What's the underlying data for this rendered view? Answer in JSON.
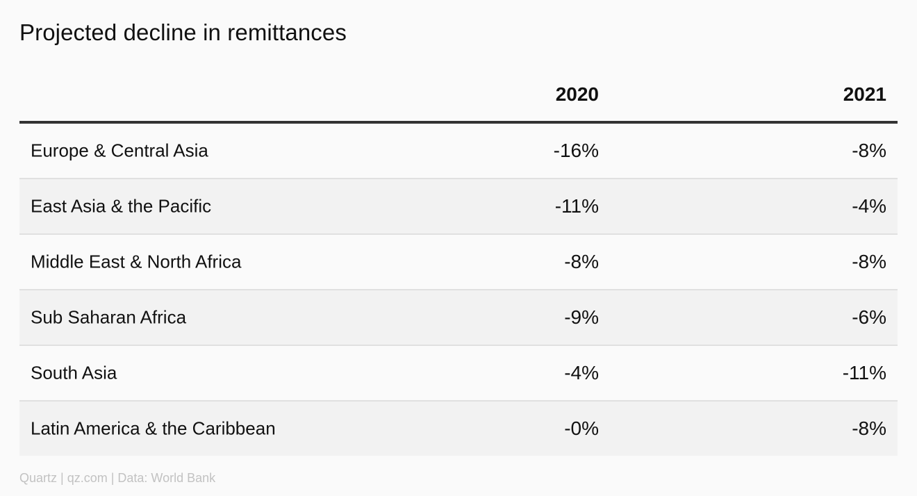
{
  "title": "Projected decline in remittances",
  "footer": "Quartz | qz.com | Data: World Bank",
  "chart_data": {
    "type": "table",
    "title": "Projected decline in remittances",
    "columns": [
      "",
      "2020",
      "2021"
    ],
    "rows": [
      {
        "region": "Europe & Central Asia",
        "y2020": "-16%",
        "y2021": "-8%"
      },
      {
        "region": "East Asia & the Pacific",
        "y2020": "-11%",
        "y2021": "-4%"
      },
      {
        "region": "Middle East & North Africa",
        "y2020": "-8%",
        "y2021": "-8%"
      },
      {
        "region": "Sub Saharan Africa",
        "y2020": "-9%",
        "y2021": "-6%"
      },
      {
        "region": "South Asia",
        "y2020": "-4%",
        "y2021": "-11%"
      },
      {
        "region": "Latin America & the Caribbean",
        "y2020": "-0%",
        "y2021": "-8%"
      }
    ],
    "values_2020": [
      -16,
      -11,
      -8,
      -9,
      -4,
      0
    ],
    "values_2021": [
      -8,
      -4,
      -8,
      -6,
      -11,
      -8
    ],
    "source": "Quartz | qz.com | Data: World Bank"
  },
  "colors": {
    "background": "#fafafa",
    "row_shade": "#f2f2f2",
    "header_rule": "#333333",
    "row_rule": "#e0e0e0",
    "text": "#111111",
    "footer_text": "#c2c2c2"
  }
}
